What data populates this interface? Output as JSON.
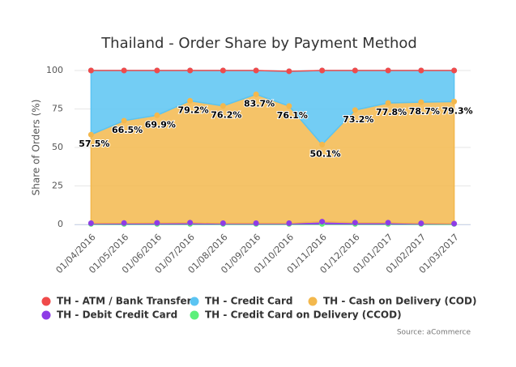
{
  "chart_data": {
    "type": "stacked_area",
    "title": "Thailand - Order Share by Payment Method",
    "y_label": "Share of Orders (%)",
    "source": "Source: aCommerce",
    "categories": [
      "01/04/2016",
      "01/05/2016",
      "01/06/2016",
      "01/07/2016",
      "01/08/2016",
      "01/09/2016",
      "01/10/2016",
      "01/11/2016",
      "01/12/2016",
      "01/01/2017",
      "01/02/2017",
      "01/03/2017"
    ],
    "ylim": [
      0,
      100
    ],
    "yticks": [
      0,
      25,
      50,
      75,
      100
    ],
    "grid": true,
    "series": [
      {
        "name": "TH - ATM / Bank Transfer",
        "color": "#f04a4a",
        "values": [
          0,
          0,
          0,
          0,
          0,
          0,
          0,
          0,
          0,
          0,
          0,
          0
        ]
      },
      {
        "name": "TH - Credit Card",
        "color": "#5bc4f2",
        "values": [
          41.7,
          32.6,
          29.1,
          19.7,
          23.0,
          15.5,
          22.6,
          48.1,
          25.7,
          21.1,
          20.6,
          20.2
        ]
      },
      {
        "name": "TH - Cash on Delivery (COD)",
        "color": "#f3b84d",
        "values": [
          57.5,
          66.5,
          69.9,
          79.2,
          76.2,
          83.7,
          76.1,
          50.1,
          73.2,
          77.8,
          78.7,
          79.3
        ],
        "value_labels": [
          "57.5%",
          "66.5%",
          "69.9%",
          "79.2%",
          "76.2%",
          "83.7%",
          "76.1%",
          "50.1%",
          "73.2%",
          "77.8%",
          "78.7%",
          "79.3%"
        ]
      },
      {
        "name": "TH - Debit Credit Card",
        "color": "#8e3ce6",
        "values": [
          0.5,
          0.6,
          0.7,
          0.8,
          0.5,
          0.5,
          0.5,
          1.5,
          0.8,
          0.8,
          0.4,
          0.2
        ]
      },
      {
        "name": "TH - Credit Card on Delivery (CCOD)",
        "color": "#5cf07a",
        "values": [
          0.3,
          0.3,
          0.3,
          0.3,
          0.3,
          0.3,
          0.3,
          0.3,
          0.3,
          0.3,
          0.3,
          0.3
        ]
      }
    ]
  }
}
